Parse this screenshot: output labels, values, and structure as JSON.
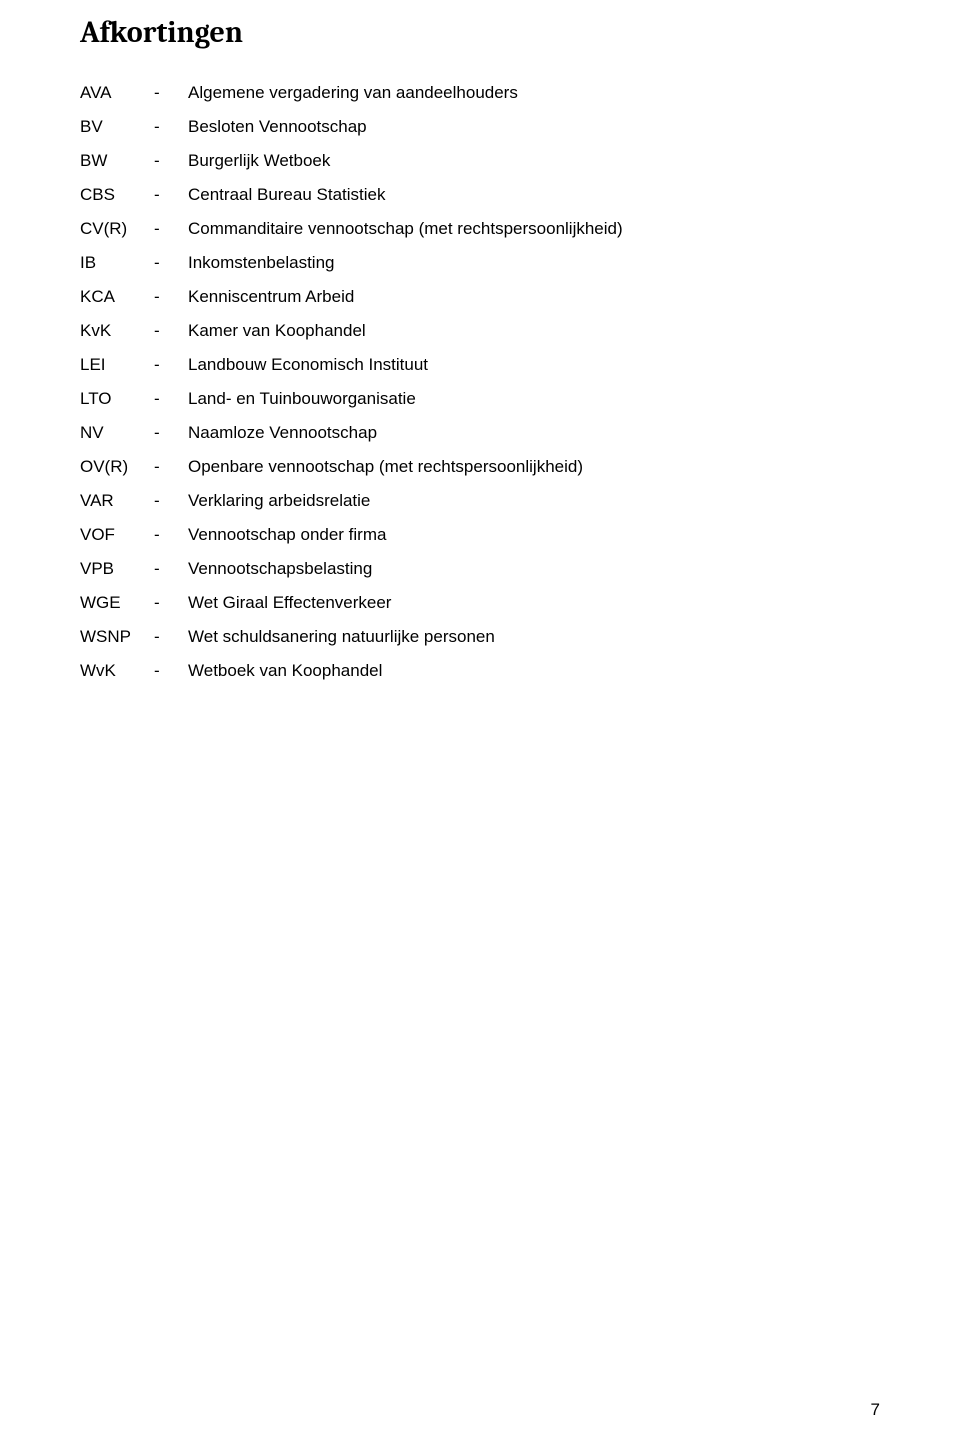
{
  "title": "Afkortingen",
  "page_number": "7",
  "colors": {
    "background": "#ffffff",
    "text": "#000000"
  },
  "typography": {
    "title_font_family": "Cambria",
    "title_font_size_pt": 22,
    "title_weight": "bold",
    "body_font_family": "Arial",
    "body_font_size_pt": 12
  },
  "abbreviations": [
    {
      "abbr": "AVA",
      "sep": "-",
      "desc": "Algemene vergadering van aandeelhouders"
    },
    {
      "abbr": "BV",
      "sep": "-",
      "desc": "Besloten Vennootschap"
    },
    {
      "abbr": "BW",
      "sep": "-",
      "desc": "Burgerlijk Wetboek"
    },
    {
      "abbr": "CBS",
      "sep": "-",
      "desc": "Centraal Bureau Statistiek"
    },
    {
      "abbr": "CV(R)",
      "sep": "-",
      "desc": "Commanditaire vennootschap (met rechtspersoonlijkheid)"
    },
    {
      "abbr": "IB",
      "sep": "-",
      "desc": "Inkomstenbelasting"
    },
    {
      "abbr": "KCA",
      "sep": "-",
      "desc": "Kenniscentrum Arbeid"
    },
    {
      "abbr": "KvK",
      "sep": "-",
      "desc": "Kamer van Koophandel"
    },
    {
      "abbr": "LEI",
      "sep": "-",
      "desc": "Landbouw Economisch Instituut"
    },
    {
      "abbr": "LTO",
      "sep": "-",
      "desc": "Land- en Tuinbouworganisatie"
    },
    {
      "abbr": "NV",
      "sep": "-",
      "desc": "Naamloze Vennootschap"
    },
    {
      "abbr": "OV(R)",
      "sep": "-",
      "desc": "Openbare vennootschap (met rechtspersoonlijkheid)"
    },
    {
      "abbr": "VAR",
      "sep": "-",
      "desc": "Verklaring arbeidsrelatie"
    },
    {
      "abbr": "VOF",
      "sep": "-",
      "desc": "Vennootschap onder firma"
    },
    {
      "abbr": "VPB",
      "sep": "-",
      "desc": "Vennootschapsbelasting"
    },
    {
      "abbr": "WGE",
      "sep": "-",
      "desc": "Wet Giraal Effectenverkeer"
    },
    {
      "abbr": "WSNP",
      "sep": "-",
      "desc": "Wet schuldsanering natuurlijke personen"
    },
    {
      "abbr": "WvK",
      "sep": "-",
      "desc": "Wetboek van Koophandel"
    }
  ]
}
